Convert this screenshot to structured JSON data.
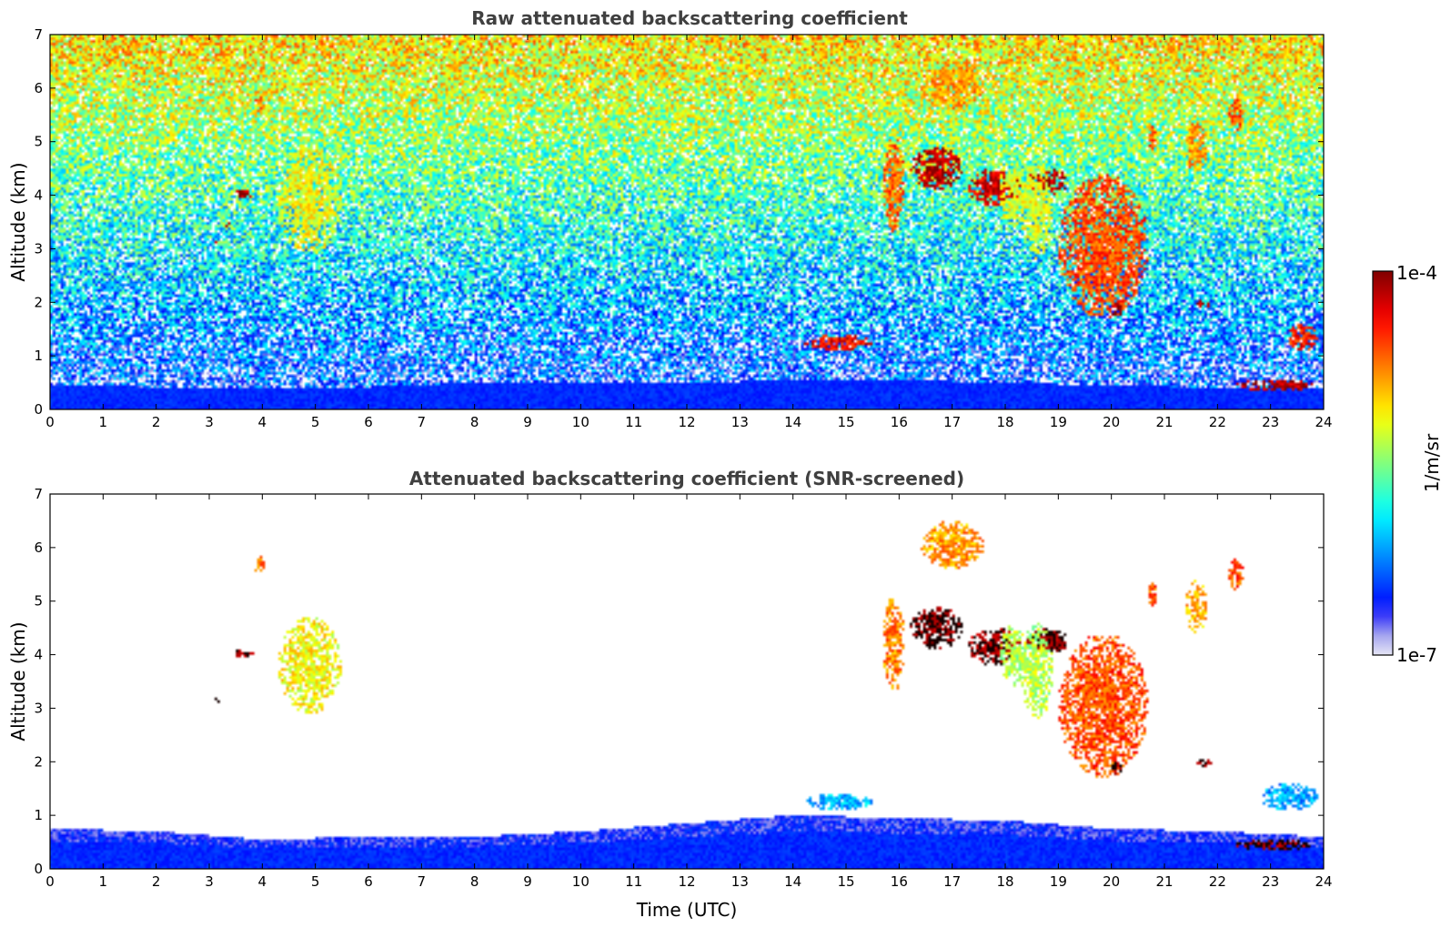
{
  "figure": {
    "colorbar": {
      "label": "1/m/sr",
      "max_label": "1e-4",
      "min_label": "1e-7",
      "min": 1e-07,
      "max": 0.0001,
      "scale": "log",
      "colormap": "jet",
      "low_end_colors": [
        "#e6e6f5",
        "#b4b4ee",
        "#7a7af0",
        "#0000ff"
      ]
    }
  },
  "chart_data": [
    {
      "type": "heatmap",
      "title": "Raw attenuated backscattering coefficient",
      "xlabel": "",
      "ylabel": "Altitude (km)",
      "xlim": [
        0,
        24
      ],
      "ylim": [
        0,
        7
      ],
      "xticks": [
        "0",
        "1",
        "2",
        "3",
        "4",
        "5",
        "6",
        "7",
        "8",
        "9",
        "10",
        "11",
        "12",
        "13",
        "14",
        "15",
        "16",
        "17",
        "18",
        "19",
        "20",
        "21",
        "22",
        "23",
        "24"
      ],
      "yticks": [
        "0",
        "1",
        "2",
        "3",
        "4",
        "5",
        "6",
        "7"
      ],
      "grid": false,
      "noise": "high",
      "features": [
        {
          "kind": "boundary-layer",
          "points": [
            [
              0,
              0.45
            ],
            [
              2,
              0.42
            ],
            [
              4,
              0.38
            ],
            [
              6,
              0.42
            ],
            [
              8,
              0.5
            ],
            [
              10,
              0.5
            ],
            [
              12,
              0.5
            ],
            [
              14,
              0.55
            ],
            [
              16,
              0.55
            ],
            [
              18,
              0.5
            ],
            [
              20,
              0.45
            ],
            [
              22,
              0.4
            ],
            [
              24,
              0.4
            ]
          ]
        },
        {
          "kind": "cloud",
          "t0": 4.3,
          "t1": 5.5,
          "z0": 2.9,
          "z1": 4.9,
          "level": 0.62
        },
        {
          "kind": "cloud",
          "t0": 3.85,
          "t1": 4.05,
          "z0": 5.5,
          "z1": 5.85,
          "level": 0.75
        },
        {
          "kind": "cloud",
          "t0": 3.45,
          "t1": 3.85,
          "z0": 3.95,
          "z1": 4.1,
          "level": 0.95
        },
        {
          "kind": "cloud",
          "t0": 3.3,
          "t1": 3.4,
          "z0": 3.42,
          "z1": 3.48,
          "level": 0.95
        },
        {
          "kind": "cloud",
          "t0": 3.1,
          "t1": 3.2,
          "z0": 3.12,
          "z1": 3.18,
          "level": 0.95
        },
        {
          "kind": "cloud",
          "t0": 15.7,
          "t1": 16.1,
          "z0": 3.3,
          "z1": 5.1,
          "level": 0.78
        },
        {
          "kind": "cloud",
          "t0": 16.2,
          "t1": 17.2,
          "z0": 4.1,
          "z1": 4.9,
          "level": 0.95
        },
        {
          "kind": "cloud",
          "t0": 16.4,
          "t1": 17.6,
          "z0": 5.6,
          "z1": 6.5,
          "level": 0.72
        },
        {
          "kind": "cloud",
          "t0": 17.3,
          "t1": 18.3,
          "z0": 3.8,
          "z1": 4.5,
          "level": 0.92
        },
        {
          "kind": "cloud",
          "t0": 17.9,
          "t1": 18.4,
          "z0": 3.4,
          "z1": 4.6,
          "level": 0.6
        },
        {
          "kind": "cloud",
          "t0": 18.4,
          "t1": 19.2,
          "z0": 4.0,
          "z1": 4.5,
          "level": 0.95
        },
        {
          "kind": "cloud",
          "t0": 18.3,
          "t1": 18.9,
          "z0": 2.8,
          "z1": 4.6,
          "level": 0.6
        },
        {
          "kind": "cloud",
          "t0": 19.0,
          "t1": 20.7,
          "z0": 1.7,
          "z1": 4.4,
          "level": 0.8
        },
        {
          "kind": "cloud",
          "t0": 20.0,
          "t1": 20.2,
          "z0": 1.7,
          "z1": 2.0,
          "level": 0.97
        },
        {
          "kind": "cloud",
          "t0": 20.7,
          "t1": 20.85,
          "z0": 4.8,
          "z1": 5.4,
          "level": 0.8
        },
        {
          "kind": "cloud",
          "t0": 21.4,
          "t1": 21.8,
          "z0": 4.4,
          "z1": 5.4,
          "level": 0.72
        },
        {
          "kind": "cloud",
          "t0": 22.2,
          "t1": 22.5,
          "z0": 5.2,
          "z1": 5.8,
          "level": 0.8
        },
        {
          "kind": "cloud",
          "t0": 14.2,
          "t1": 15.5,
          "z0": 1.1,
          "z1": 1.4,
          "level": 0.88
        },
        {
          "kind": "cloud",
          "t0": 21.6,
          "t1": 21.9,
          "z0": 1.9,
          "z1": 2.05,
          "level": 0.95
        },
        {
          "kind": "cloud",
          "t0": 22.3,
          "t1": 23.9,
          "z0": 0.35,
          "z1": 0.55,
          "level": 0.95
        },
        {
          "kind": "cloud",
          "t0": 23.3,
          "t1": 23.9,
          "z0": 1.1,
          "z1": 1.6,
          "level": 0.85
        }
      ]
    },
    {
      "type": "heatmap",
      "title": "Attenuated backscattering coefficient (SNR-screened)",
      "xlabel": "Time (UTC)",
      "ylabel": "Altitude (km)",
      "xlim": [
        0,
        24
      ],
      "ylim": [
        0,
        7
      ],
      "xticks": [
        "0",
        "1",
        "2",
        "3",
        "4",
        "5",
        "6",
        "7",
        "8",
        "9",
        "10",
        "11",
        "12",
        "13",
        "14",
        "15",
        "16",
        "17",
        "18",
        "19",
        "20",
        "21",
        "22",
        "23",
        "24"
      ],
      "yticks": [
        "0",
        "1",
        "2",
        "3",
        "4",
        "5",
        "6",
        "7"
      ],
      "grid": false,
      "noise": "none",
      "features": [
        {
          "kind": "boundary-layer",
          "points": [
            [
              0,
              0.75
            ],
            [
              2,
              0.7
            ],
            [
              4,
              0.55
            ],
            [
              6,
              0.6
            ],
            [
              8,
              0.6
            ],
            [
              10,
              0.7
            ],
            [
              12,
              0.85
            ],
            [
              14,
              1.0
            ],
            [
              16,
              0.95
            ],
            [
              18,
              0.9
            ],
            [
              20,
              0.75
            ],
            [
              22,
              0.7
            ],
            [
              24,
              0.6
            ]
          ]
        },
        {
          "kind": "cloud",
          "t0": 4.3,
          "t1": 5.5,
          "z0": 2.9,
          "z1": 4.7,
          "level": 0.62
        },
        {
          "kind": "cloud",
          "t0": 3.85,
          "t1": 4.05,
          "z0": 5.5,
          "z1": 5.85,
          "level": 0.75
        },
        {
          "kind": "cloud",
          "t0": 3.45,
          "t1": 3.85,
          "z0": 3.95,
          "z1": 4.1,
          "level": 1.0
        },
        {
          "kind": "cloud",
          "t0": 3.3,
          "t1": 3.4,
          "z0": 3.42,
          "z1": 3.48,
          "level": 1.0
        },
        {
          "kind": "cloud",
          "t0": 3.1,
          "t1": 3.2,
          "z0": 3.12,
          "z1": 3.18,
          "level": 1.0
        },
        {
          "kind": "cloud",
          "t0": 15.7,
          "t1": 16.1,
          "z0": 3.3,
          "z1": 5.1,
          "level": 0.75
        },
        {
          "kind": "cloud",
          "t0": 16.2,
          "t1": 17.2,
          "z0": 4.1,
          "z1": 4.9,
          "level": 1.0
        },
        {
          "kind": "cloud",
          "t0": 16.4,
          "t1": 17.6,
          "z0": 5.6,
          "z1": 6.5,
          "level": 0.72
        },
        {
          "kind": "cloud",
          "t0": 17.3,
          "t1": 18.3,
          "z0": 3.8,
          "z1": 4.5,
          "level": 0.98
        },
        {
          "kind": "cloud",
          "t0": 17.9,
          "t1": 18.4,
          "z0": 3.4,
          "z1": 4.6,
          "level": 0.55
        },
        {
          "kind": "cloud",
          "t0": 18.4,
          "t1": 19.2,
          "z0": 4.0,
          "z1": 4.5,
          "level": 1.0
        },
        {
          "kind": "cloud",
          "t0": 18.3,
          "t1": 18.9,
          "z0": 2.8,
          "z1": 4.6,
          "level": 0.55
        },
        {
          "kind": "cloud",
          "t0": 19.0,
          "t1": 20.7,
          "z0": 1.7,
          "z1": 4.4,
          "level": 0.8
        },
        {
          "kind": "cloud",
          "t0": 20.0,
          "t1": 20.2,
          "z0": 1.7,
          "z1": 2.0,
          "level": 1.0
        },
        {
          "kind": "cloud",
          "t0": 20.7,
          "t1": 20.85,
          "z0": 4.8,
          "z1": 5.4,
          "level": 0.8
        },
        {
          "kind": "cloud",
          "t0": 21.4,
          "t1": 21.8,
          "z0": 4.4,
          "z1": 5.4,
          "level": 0.7
        },
        {
          "kind": "cloud",
          "t0": 22.2,
          "t1": 22.5,
          "z0": 5.2,
          "z1": 5.8,
          "level": 0.8
        },
        {
          "kind": "cloud",
          "t0": 14.2,
          "t1": 15.5,
          "z0": 1.1,
          "z1": 1.4,
          "level": 0.3
        },
        {
          "kind": "cloud",
          "t0": 21.6,
          "t1": 21.9,
          "z0": 1.9,
          "z1": 2.05,
          "level": 1.0
        },
        {
          "kind": "cloud",
          "t0": 22.3,
          "t1": 23.9,
          "z0": 0.35,
          "z1": 0.55,
          "level": 1.0
        },
        {
          "kind": "cloud",
          "t0": 22.8,
          "t1": 23.9,
          "z0": 1.1,
          "z1": 1.6,
          "level": 0.28
        }
      ]
    }
  ]
}
